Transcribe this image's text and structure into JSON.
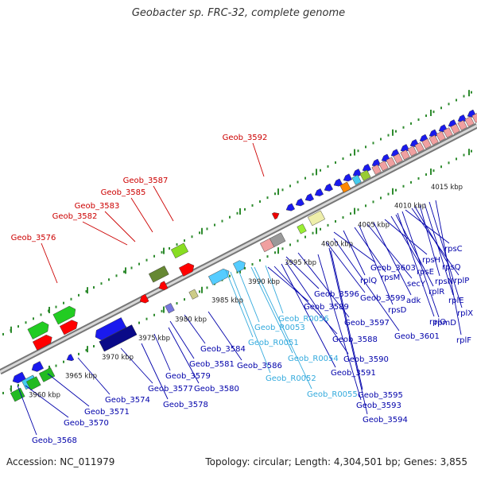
{
  "title": "Geobacter sp. FRC-32, complete genome",
  "footer": {
    "accession": "Accession: NC_011979",
    "topology": "Topology: circular; Length: 4,304,501 bp; Genes: 3,855"
  },
  "colors": {
    "backbone": "#9a9a9a",
    "tick": "#2e8b2e",
    "label_red": "#cc0000",
    "label_blue": "#0000aa",
    "label_cyan": "#33aadd"
  },
  "scale_labels": [
    "3960 kbp",
    "3965 kbp",
    "3970 kbp",
    "3975 kbp",
    "3980 kbp",
    "3985 kbp",
    "3990 kbp",
    "3995 kbp",
    "4000 kbp",
    "4005 kbp",
    "4010 kbp",
    "4015 kbp"
  ],
  "red_labels": [
    "Geob_3592",
    "Geob_3587",
    "Geob_3585",
    "Geob_3583",
    "Geob_3582",
    "Geob_3576"
  ],
  "blue_labels": [
    "Geob_3568",
    "Geob_3570",
    "Geob_3571",
    "Geob_3574",
    "Geob_3577",
    "Geob_3578",
    "Geob_3579",
    "Geob_3580",
    "Geob_3581",
    "Geob_3584",
    "Geob_3586",
    "Geob_3588",
    "Geob_3589",
    "Geob_3590",
    "Geob_3591",
    "Geob_3593",
    "Geob_3594",
    "Geob_3595",
    "Geob_3596",
    "Geob_3597",
    "Geob_3599",
    "Geob_3601",
    "Geob_3603",
    "rplQ",
    "rpsM",
    "rpsD",
    "secY",
    "adk",
    "rpsH",
    "rpsE",
    "rplR",
    "rplO",
    "rpmD",
    "rpsC",
    "rplP",
    "rpsQ",
    "rpsN",
    "rplE",
    "rplX",
    "rplF"
  ],
  "cyan_labels": [
    "Geob_R0051",
    "Geob_R0052",
    "Geob_R0053",
    "Geob_R0054",
    "Geob_R0055",
    "Geob_R0056"
  ]
}
